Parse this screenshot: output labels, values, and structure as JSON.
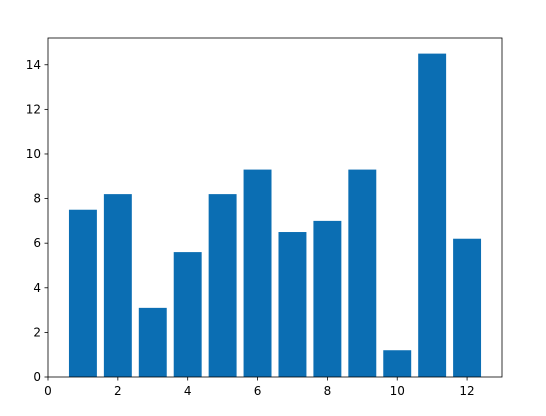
{
  "chart_data": {
    "type": "bar",
    "x": [
      1,
      2,
      3,
      4,
      5,
      6,
      7,
      8,
      9,
      10,
      11,
      12
    ],
    "values": [
      7.5,
      8.2,
      3.1,
      5.6,
      8.2,
      9.3,
      6.5,
      7.0,
      9.3,
      1.2,
      14.5,
      6.2
    ],
    "color": "#0b6eb3",
    "bar_width": 0.8,
    "xlim": [
      0,
      13
    ],
    "xticks": [
      0,
      2,
      4,
      6,
      8,
      10,
      12
    ],
    "ylim": [
      0,
      15.2
    ],
    "yticks": [
      0,
      2,
      4,
      6,
      8,
      10,
      12,
      14
    ],
    "grid": false
  }
}
